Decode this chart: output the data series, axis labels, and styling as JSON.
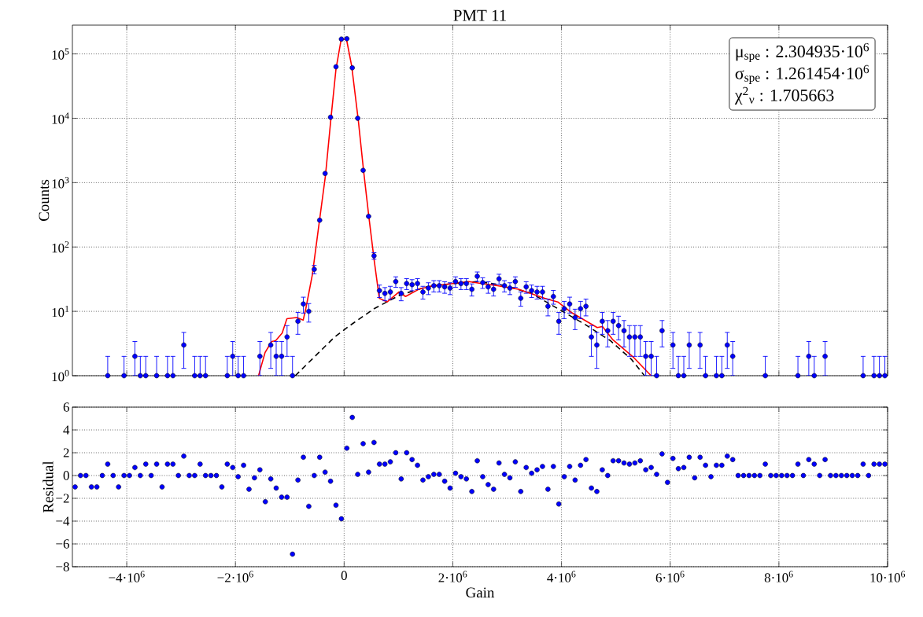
{
  "chart_data": [
    {
      "type": "scatter",
      "title": "PMT 11",
      "ylabel": "Counts",
      "log": "y",
      "grid": true,
      "tick_labels": "y",
      "xlim": [
        -5000000,
        10000000
      ],
      "xticks": [
        -4000000,
        -2000000,
        0,
        2000000,
        4000000,
        6000000,
        8000000,
        10000000
      ],
      "ylim": [
        1,
        280000
      ],
      "yticks": [
        {
          "value": 1,
          "label": "10$^{0}$"
        },
        {
          "value": 10,
          "label": "10$^{1}$"
        },
        {
          "value": 100,
          "label": "10$^{2}$"
        },
        {
          "value": 1000,
          "label": "10$^{3}$"
        },
        {
          "value": 10000,
          "label": "10$^{4}$"
        },
        {
          "value": 100000,
          "label": "10$^{5}$"
        }
      ],
      "annotations": [
        "μ$_{spe}$ : 2.304935·10$^{6}$",
        "σ$_{spe}$ : 1.261454·10$^{6}$",
        "χ$^{2}$$_{ν}$ : 1.705663"
      ],
      "series": [
        {
          "type": "line",
          "color": "#000000",
          "line_style": "dashed",
          "x": [
            -899000,
            -174000,
            116000,
            551000,
            1034000,
            1517000,
            2000000,
            2483000,
            2966000,
            3449000,
            3932000,
            4415000,
            4899000,
            5285000,
            5527000
          ],
          "values": [
            1,
            4,
            6.1,
            11,
            18,
            24,
            27,
            29,
            25,
            19,
            11,
            6.4,
            3.5,
            1.8,
            1
          ]
        },
        {
          "type": "line",
          "color": "#ff0000",
          "x": [
            -1575000,
            -1454000,
            -1333000,
            -1261000,
            -1140000,
            -1053000,
            -874000,
            -754000,
            -705000,
            -585000,
            -464000,
            -343000,
            -246000,
            -150000,
            -53000,
            43000,
            140000,
            261000,
            357000,
            454000,
            551000,
            647000,
            792000,
            1010000,
            1130000,
            1372000,
            1638000,
            2000000,
            2290000,
            2532000,
            2821000,
            3208000,
            3691000,
            3932000,
            4174000,
            4657000,
            4754000,
            4947000,
            5333000,
            5648000
          ],
          "values": [
            1,
            2.3,
            3.4,
            3.5,
            4.6,
            7.7,
            8,
            7.3,
            11,
            37,
            220,
            1300,
            9300,
            58000,
            170000,
            170000,
            64000,
            9300,
            1560,
            300,
            64,
            16,
            14,
            20,
            17,
            22,
            25,
            27,
            29,
            27,
            25,
            22,
            16,
            14,
            9.7,
            5.6,
            5.8,
            3.6,
            1.9,
            1
          ]
        },
        {
          "type": "scatter",
          "color": "#0000ff",
          "marker": "circle",
          "x": [
            -4350000,
            -4050000,
            -3850000,
            -3750000,
            -3650000,
            -3450000,
            -3250000,
            -3150000,
            -2950000,
            -2750000,
            -2650000,
            -2550000,
            -2150000,
            -2050000,
            -1950000,
            -1850000,
            -1550000,
            -1350000,
            -1250000,
            -1150000,
            -1050000,
            -950000,
            -850000,
            -750000,
            -650000,
            -550000,
            -450000,
            -350000,
            -250000,
            -150000,
            -50000,
            50000,
            150000,
            250000,
            350000,
            450000,
            550000,
            650000,
            750000,
            850000,
            950000,
            1050000,
            1150000,
            1250000,
            1350000,
            1450000,
            1550000,
            1650000,
            1750000,
            1850000,
            1950000,
            2050000,
            2150000,
            2250000,
            2350000,
            2450000,
            2550000,
            2650000,
            2750000,
            2850000,
            2950000,
            3050000,
            3150000,
            3250000,
            3350000,
            3450000,
            3550000,
            3650000,
            3750000,
            3850000,
            3950000,
            4050000,
            4150000,
            4250000,
            4350000,
            4450000,
            4550000,
            4650000,
            4750000,
            4850000,
            4950000,
            5050000,
            5150000,
            5250000,
            5350000,
            5450000,
            5550000,
            5650000,
            5750000,
            5850000,
            6050000,
            6150000,
            6250000,
            6350000,
            6550000,
            6650000,
            6850000,
            6950000,
            7050000,
            7150000,
            7750000,
            8350000,
            8550000,
            8650000,
            8850000,
            9550000,
            9750000,
            9850000,
            9950000
          ],
          "values": [
            1,
            1,
            2,
            1,
            1,
            1,
            1,
            1,
            3,
            1,
            1,
            1,
            1,
            2,
            1,
            1,
            2,
            3,
            2,
            2,
            4,
            1,
            7,
            13,
            10,
            45,
            261,
            1390,
            10380,
            63100,
            170000,
            172000,
            60800,
            10000,
            1550,
            300,
            73,
            21,
            19,
            20,
            29,
            19,
            27,
            26,
            27,
            20,
            23,
            25,
            25,
            24,
            23,
            29,
            27,
            27,
            22,
            35,
            28,
            24,
            22,
            32,
            25,
            23,
            29,
            16,
            24,
            21,
            20,
            20,
            12,
            17,
            7,
            11,
            13,
            8,
            11,
            12,
            4,
            3,
            7,
            5,
            7,
            6,
            5,
            4,
            4,
            4,
            2,
            2,
            1,
            5,
            3,
            1,
            1,
            3,
            3,
            1,
            1,
            1,
            3,
            2,
            1,
            1,
            2,
            1,
            2,
            1,
            1,
            1,
            1
          ],
          "errors": [
            [
              1,
              2
            ],
            [
              1,
              2
            ],
            [
              1,
              3.4
            ],
            [
              1,
              2
            ],
            [
              1,
              2
            ],
            [
              1,
              2
            ],
            [
              1,
              2
            ],
            [
              1,
              2
            ],
            [
              1.3,
              4.7
            ],
            [
              1,
              2
            ],
            [
              1,
              2
            ],
            [
              1,
              2
            ],
            [
              1,
              2
            ],
            [
              1,
              3.4
            ],
            [
              1,
              2
            ],
            [
              1,
              2
            ],
            [
              1,
              3.4
            ],
            [
              1.3,
              4.7
            ],
            [
              1,
              3.4
            ],
            [
              1,
              3.4
            ],
            [
              2,
              6
            ],
            [
              1,
              2
            ],
            [
              4.4,
              9.6
            ],
            [
              9.4,
              16.6
            ],
            [
              6.8,
              13.2
            ],
            [
              38.3,
              51.7
            ],
            null,
            null,
            null,
            null,
            null,
            null,
            null,
            null,
            null,
            null,
            [
              64.5,
              81.5
            ],
            [
              16.4,
              25.6
            ],
            [
              14.6,
              23.4
            ],
            [
              15.5,
              24.5
            ],
            [
              23.6,
              34.4
            ],
            [
              14.6,
              23.4
            ],
            [
              21.8,
              32.2
            ],
            [
              20.9,
              31.1
            ],
            [
              21.8,
              32.2
            ],
            [
              15.5,
              24.5
            ],
            [
              18.2,
              27.8
            ],
            [
              20,
              30
            ],
            [
              20,
              30
            ],
            [
              19.1,
              28.9
            ],
            [
              18.2,
              27.8
            ],
            [
              23.6,
              34.4
            ],
            [
              21.8,
              32.2
            ],
            [
              21.8,
              32.2
            ],
            [
              17.3,
              26.7
            ],
            [
              29.1,
              40.9
            ],
            [
              22.7,
              33.3
            ],
            [
              19.1,
              28.9
            ],
            [
              17.3,
              26.7
            ],
            [
              26.3,
              37.7
            ],
            [
              20,
              30
            ],
            [
              18.2,
              27.8
            ],
            [
              23.6,
              34.4
            ],
            [
              12,
              20
            ],
            [
              19.1,
              28.9
            ],
            [
              16.4,
              25.6
            ],
            [
              15.5,
              24.5
            ],
            [
              15.5,
              24.5
            ],
            [
              8.5,
              15.5
            ],
            [
              12.9,
              21.1
            ],
            [
              4.4,
              9.6
            ],
            [
              7.7,
              14.3
            ],
            [
              9.4,
              16.6
            ],
            [
              5.2,
              10.8
            ],
            [
              7.7,
              14.3
            ],
            [
              8.5,
              15.5
            ],
            [
              2,
              6
            ],
            [
              1.3,
              4.7
            ],
            [
              4.4,
              9.6
            ],
            [
              2.8,
              7.2
            ],
            [
              4.4,
              9.6
            ],
            [
              3.6,
              8.4
            ],
            [
              2.8,
              7.2
            ],
            [
              2,
              6
            ],
            [
              2,
              6
            ],
            [
              2,
              6
            ],
            [
              1,
              3.4
            ],
            [
              1,
              3.4
            ],
            [
              1,
              2
            ],
            [
              2.8,
              7.2
            ],
            [
              1.3,
              4.7
            ],
            [
              1,
              2
            ],
            [
              1,
              2
            ],
            [
              1.3,
              4.7
            ],
            [
              1.3,
              4.7
            ],
            [
              1,
              2
            ],
            [
              1,
              2
            ],
            [
              1,
              2
            ],
            [
              1.3,
              4.7
            ],
            [
              1,
              3.4
            ],
            [
              1,
              2
            ],
            [
              1,
              2
            ],
            [
              1,
              3.4
            ],
            [
              1,
              2
            ],
            [
              1,
              3.4
            ],
            [
              1,
              2
            ],
            [
              1,
              2
            ],
            [
              1,
              2
            ],
            [
              1,
              2
            ]
          ]
        }
      ]
    },
    {
      "type": "scatter",
      "xlabel": "Gain",
      "ylabel": "Residual",
      "grid": true,
      "xlim": [
        -5000000,
        10000000
      ],
      "xticks": [
        {
          "value": -4000000,
          "label": "−4·10$^{6}$"
        },
        {
          "value": -2000000,
          "label": "−2·10$^{6}$"
        },
        0,
        {
          "value": 2000000,
          "label": "2·10$^{6}$"
        },
        {
          "value": 4000000,
          "label": "4·10$^{6}$"
        },
        {
          "value": 6000000,
          "label": "6·10$^{6}$"
        },
        {
          "value": 8000000,
          "label": "8·10$^{6}$"
        },
        {
          "value": 10000000,
          "label": "10·10$^{6}$"
        }
      ],
      "ylim": [
        -8,
        6
      ],
      "yticks": [
        {
          "value": -8,
          "label": "−8"
        },
        {
          "value": -6,
          "label": "−6"
        },
        {
          "value": -4,
          "label": "−4"
        },
        {
          "value": -2,
          "label": "−2"
        },
        0,
        2,
        4,
        6
      ],
      "series": [
        {
          "color": "#0000ff",
          "marker": "circle",
          "x": [
            -4950000,
            -4850000,
            -4750000,
            -4650000,
            -4550000,
            -4450000,
            -4350000,
            -4250000,
            -4150000,
            -4050000,
            -3950000,
            -3850000,
            -3750000,
            -3650000,
            -3550000,
            -3450000,
            -3350000,
            -3250000,
            -3150000,
            -3050000,
            -2950000,
            -2850000,
            -2750000,
            -2650000,
            -2550000,
            -2450000,
            -2350000,
            -2250000,
            -2150000,
            -2050000,
            -1950000,
            -1850000,
            -1750000,
            -1650000,
            -1550000,
            -1450000,
            -1350000,
            -1250000,
            -1150000,
            -1050000,
            -950000,
            -850000,
            -750000,
            -650000,
            -550000,
            -450000,
            -350000,
            -250000,
            -150000,
            -50000,
            50000,
            150000,
            250000,
            350000,
            450000,
            550000,
            650000,
            750000,
            850000,
            950000,
            1050000,
            1150000,
            1250000,
            1350000,
            1450000,
            1550000,
            1650000,
            1750000,
            1850000,
            1950000,
            2050000,
            2150000,
            2250000,
            2350000,
            2450000,
            2550000,
            2650000,
            2750000,
            2850000,
            2950000,
            3050000,
            3150000,
            3250000,
            3350000,
            3450000,
            3550000,
            3650000,
            3750000,
            3850000,
            3950000,
            4050000,
            4150000,
            4250000,
            4350000,
            4450000,
            4550000,
            4650000,
            4750000,
            4850000,
            4950000,
            5050000,
            5150000,
            5250000,
            5350000,
            5450000,
            5550000,
            5650000,
            5750000,
            5850000,
            5950000,
            6050000,
            6150000,
            6250000,
            6350000,
            6450000,
            6550000,
            6650000,
            6750000,
            6850000,
            6950000,
            7050000,
            7150000,
            7250000,
            7350000,
            7450000,
            7550000,
            7650000,
            7750000,
            7850000,
            7950000,
            8050000,
            8150000,
            8250000,
            8350000,
            8450000,
            8550000,
            8650000,
            8750000,
            8850000,
            8950000,
            9050000,
            9150000,
            9250000,
            9350000,
            9450000,
            9550000,
            9650000,
            9750000,
            9850000,
            9950000
          ],
          "values": [
            -1,
            0,
            0,
            -1,
            -1,
            0,
            1,
            0,
            -1,
            0,
            0,
            0.7,
            0,
            1,
            0,
            1,
            -1,
            1,
            1,
            0,
            1.7,
            0,
            0,
            1,
            0,
            0,
            0,
            -1,
            1,
            0.7,
            -0.1,
            0.9,
            -1.2,
            -0.2,
            0.5,
            -2.3,
            -0.3,
            -1.1,
            -1.9,
            -1.9,
            -6.9,
            -0.4,
            1.6,
            -2.7,
            0,
            1.6,
            0.3,
            -0.5,
            -2.6,
            -3.8,
            2.4,
            5.1,
            0.1,
            2.8,
            0.3,
            2.9,
            1,
            1,
            1.2,
            2,
            -0.3,
            2,
            1.4,
            0.9,
            -0.4,
            -0.1,
            0.1,
            0.1,
            -0.5,
            -1.1,
            0.2,
            -0.1,
            -0.3,
            -1.4,
            1.3,
            -0.1,
            -0.8,
            -1.2,
            1.1,
            0.1,
            -0.2,
            1.2,
            -1.4,
            0.7,
            0.2,
            0.5,
            0.8,
            -1.2,
            0.8,
            -2.5,
            -0.1,
            0.8,
            -0.4,
            0.9,
            1.4,
            -1.1,
            -1.4,
            0.5,
            0,
            1.3,
            1.3,
            1.1,
            1,
            1.1,
            1.3,
            0.5,
            0.7,
            0.1,
            1.9,
            -0.6,
            1.5,
            0.6,
            0.7,
            1.6,
            -0.2,
            1.6,
            0.9,
            -0.1,
            0.9,
            0.9,
            1.7,
            1.4,
            0,
            0,
            0,
            0,
            0,
            1,
            0,
            0,
            0,
            0,
            0,
            1,
            0,
            1.4,
            1,
            0,
            1.4,
            0,
            0,
            0,
            0,
            0,
            0,
            1,
            0,
            1,
            1,
            1
          ]
        }
      ]
    }
  ]
}
